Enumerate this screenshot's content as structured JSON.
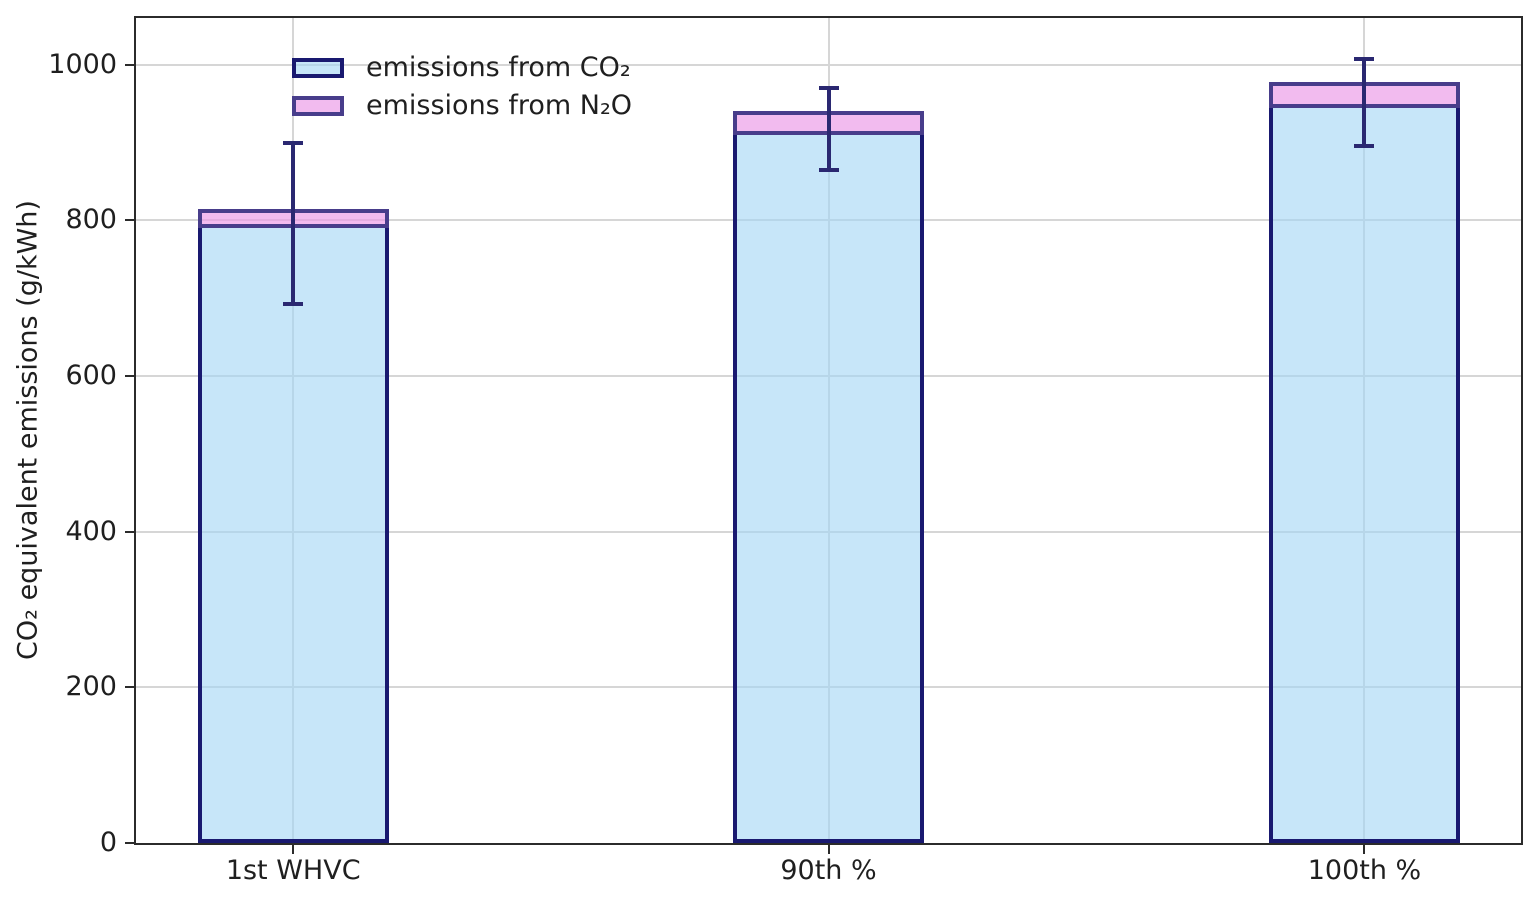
{
  "chart_data": {
    "type": "bar",
    "stacked": true,
    "title": "",
    "xlabel": "",
    "ylabel": "CO₂ equivalent emissions (g/kWh)",
    "categories": [
      "1st WHVC",
      "90th %",
      "100th %"
    ],
    "series": [
      {
        "name": "emissions from CO₂",
        "values": [
          795,
          915,
          950
        ],
        "fill_color": "rgba(165,215,245,0.62)",
        "edge_color": "#191970"
      },
      {
        "name": "emissions from N₂O",
        "values": [
          20,
          25,
          28
        ],
        "fill_color": "rgba(235,150,230,0.65)",
        "edge_color": "#483d8b"
      }
    ],
    "stack_totals": [
      815,
      940,
      978
    ],
    "error_bars": {
      "attached_to_series": "emissions from CO₂",
      "low": [
        692,
        865,
        895
      ],
      "high": [
        900,
        970,
        1007
      ],
      "color": "#2a2871"
    },
    "ylim": [
      0,
      1060
    ],
    "yticks": [
      0,
      200,
      400,
      600,
      800,
      1000
    ],
    "grid": "both",
    "legend": {
      "position": "upper left",
      "frame": false,
      "entries": [
        "emissions from CO₂",
        "emissions from N₂O"
      ]
    }
  },
  "colors": {
    "background": "#ffffff",
    "gridline": "#d6d6d6",
    "spine": "#2b2b2b",
    "text": "#1f1f1f"
  }
}
